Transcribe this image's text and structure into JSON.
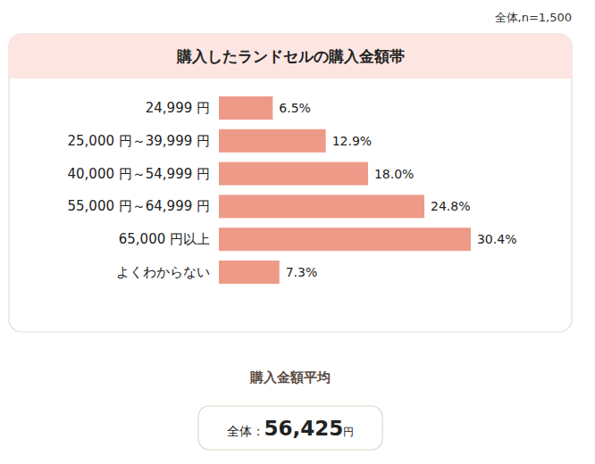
{
  "chart_data": {
    "type": "bar",
    "orientation": "horizontal",
    "title": "購入したランドセルの購入金額帯",
    "subtitle": "全体,n=1,500",
    "categories": [
      "24,999 円",
      "25,000 円～39,999 円",
      "40,000 円～54,999 円",
      "55,000 円～64,999 円",
      "65,000 円以上",
      "よくわからない"
    ],
    "values": [
      6.5,
      12.9,
      18.0,
      24.8,
      30.4,
      7.3
    ],
    "value_labels": [
      "6.5%",
      "12.9%",
      "18.0%",
      "24.8%",
      "30.4%",
      "7.3%"
    ],
    "color": "#ee9a88",
    "xlim": [
      0,
      40
    ],
    "data_labels": true,
    "tick_labels": "y",
    "grid": false
  },
  "average": {
    "title": "購入金額平均",
    "label": "全体：",
    "value": "56,425",
    "unit": "円"
  }
}
